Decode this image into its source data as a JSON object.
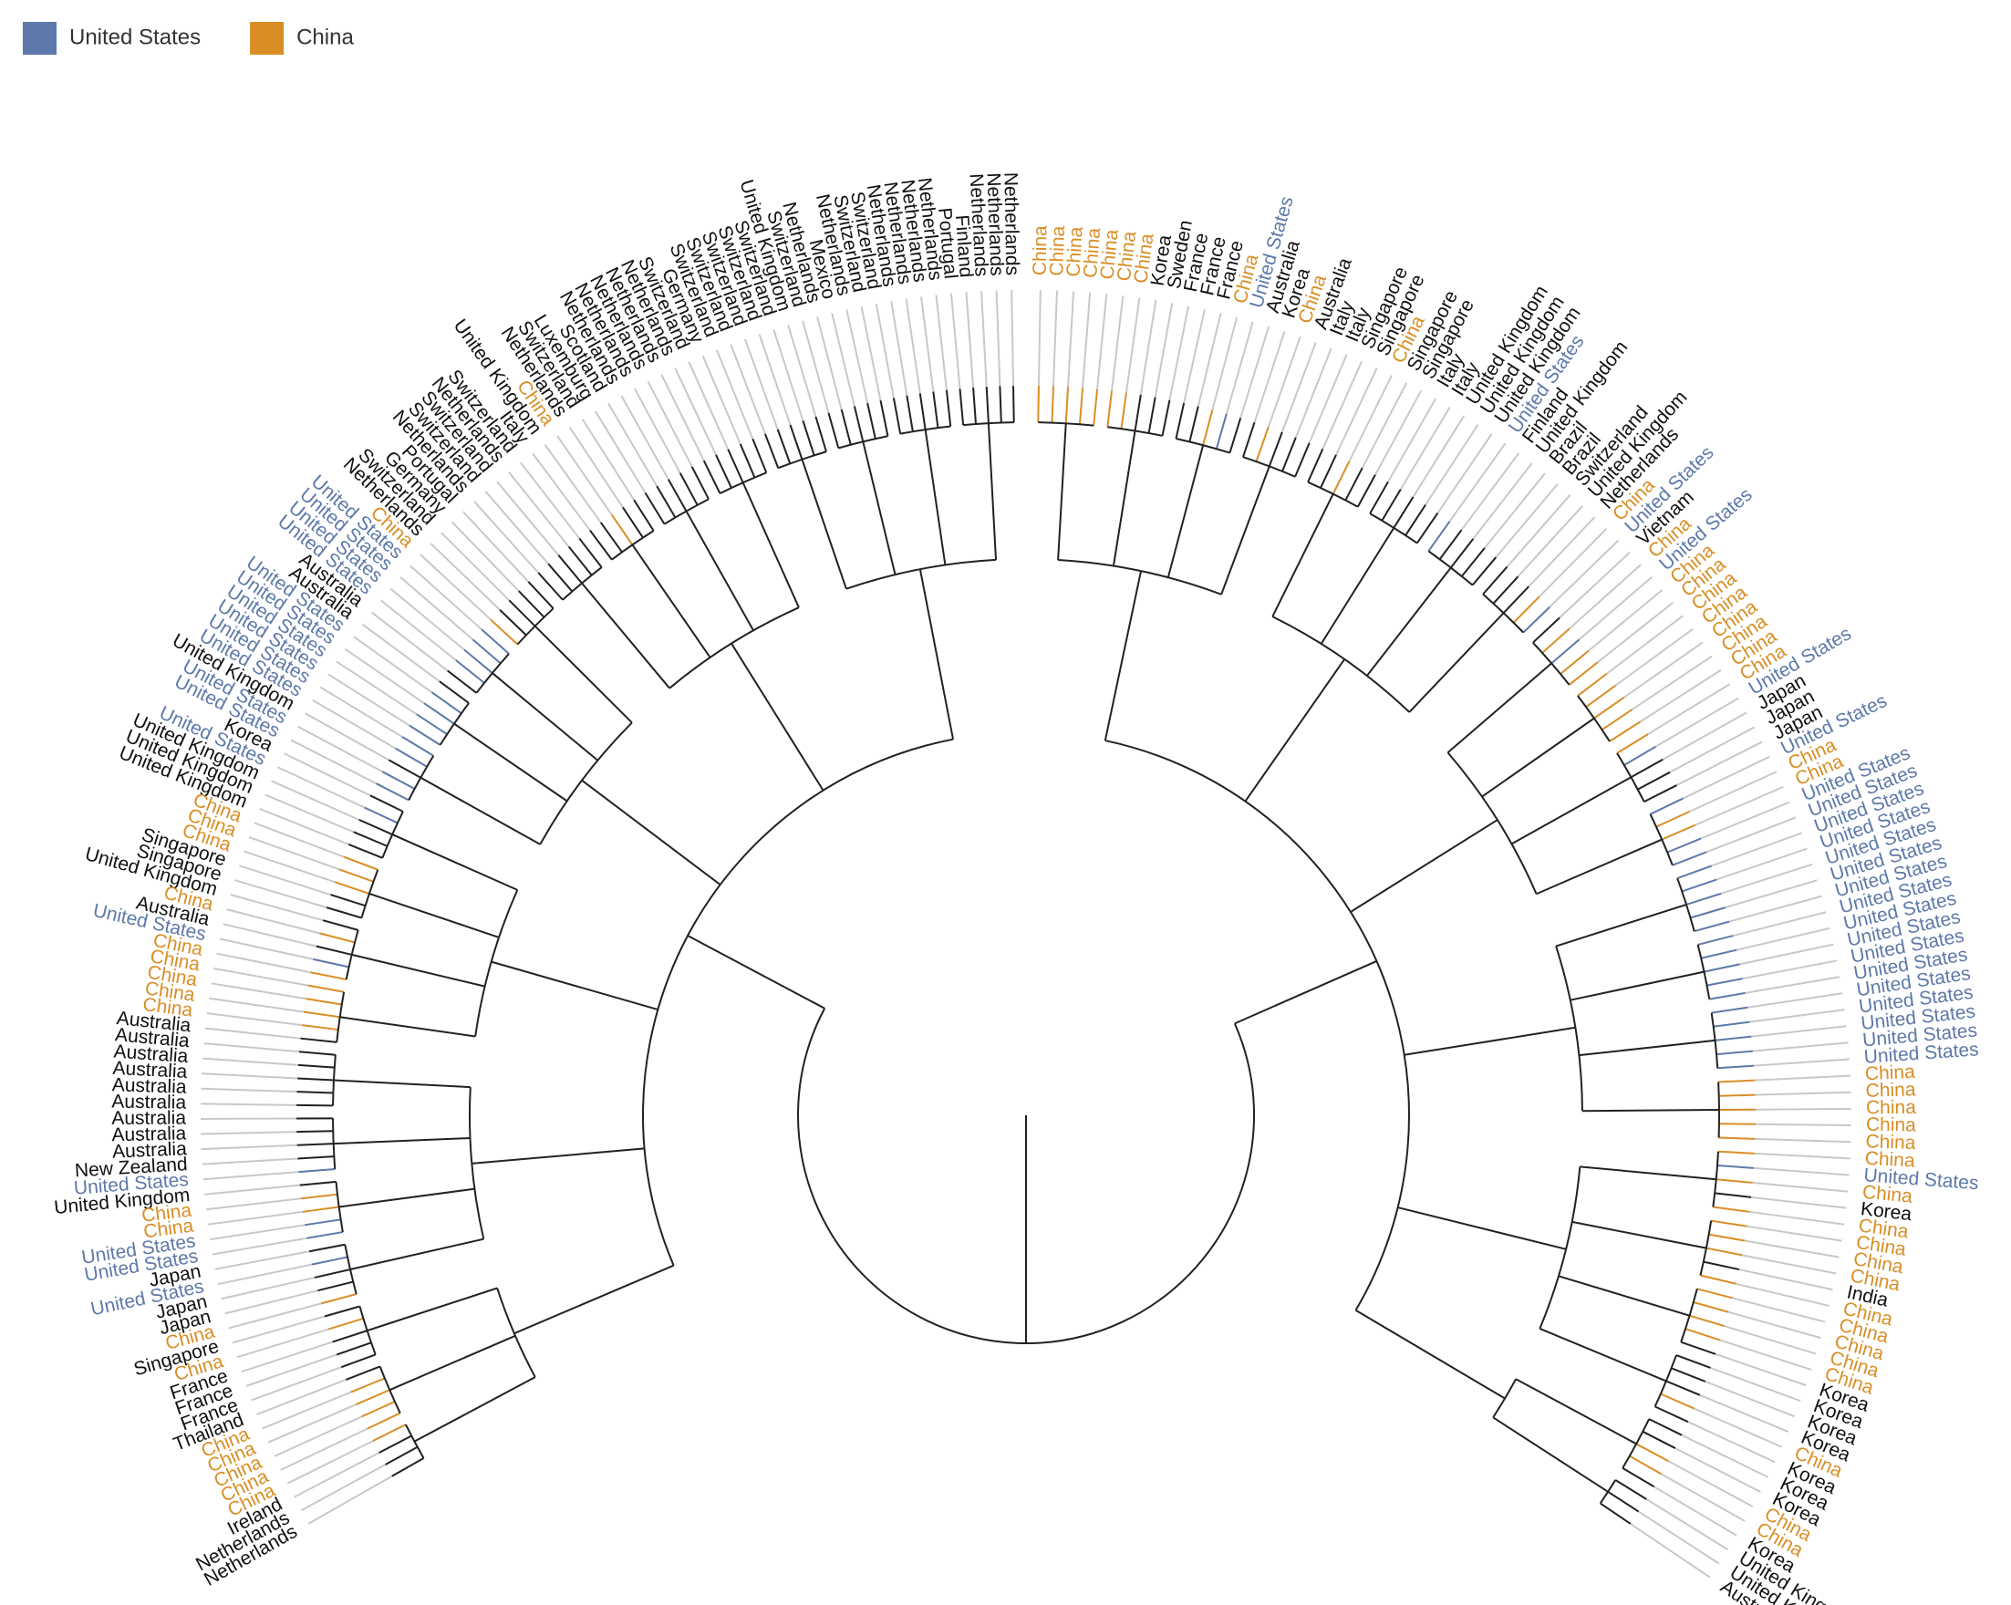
{
  "legend": [
    {
      "name": "United States",
      "color": "#5e79a9"
    },
    {
      "name": "China",
      "color": "#d98e25"
    }
  ],
  "leaves_right": [
    "China",
    "China",
    "China",
    "China",
    "China",
    "China",
    "China",
    "Korea",
    "Sweden",
    "France",
    "France",
    "France",
    "China",
    "United States",
    "Australia",
    "Korea",
    "China",
    "Australia",
    "Italy",
    "Italy",
    "Singapore",
    "Singapore",
    "China",
    "Singapore",
    "Singapore",
    "Italy",
    "Italy",
    "United Kingdom",
    "United Kingdom",
    "United Kingdom",
    "United States",
    "Finland",
    "United Kingdom",
    "Brazil",
    "Brazil",
    "Switzerland",
    "United Kingdom",
    "Netherlands",
    "China",
    "United States",
    "Vietnam",
    "China",
    "United States",
    "China",
    "China",
    "China",
    "China",
    "China",
    "China",
    "China",
    "China",
    "United States",
    "Japan",
    "Japan",
    "Japan",
    "United States",
    "China",
    "China",
    "United States",
    "United States",
    "United States",
    "United States",
    "United States",
    "United States",
    "United States",
    "United States",
    "United States",
    "United States",
    "United States",
    "United States",
    "United States",
    "United States",
    "United States",
    "United States",
    "United States",
    "China",
    "China",
    "China",
    "China",
    "China",
    "China",
    "United States",
    "China",
    "Korea",
    "China",
    "China",
    "China",
    "China",
    "India",
    "China",
    "China",
    "China",
    "China",
    "China",
    "Korea",
    "Korea",
    "Korea",
    "Korea",
    "China",
    "Korea",
    "Korea",
    "Korea",
    "China",
    "China",
    "Korea",
    "United Kingdom",
    "United Kingdom",
    "Australia"
  ],
  "leaves_left": [
    "Netherlands",
    "Netherlands",
    "Netherlands",
    "Finland",
    "Portugal",
    "Netherlands",
    "Netherlands",
    "Netherlands",
    "Netherlands",
    "Switzerland",
    "Switzerland",
    "Netherlands",
    "Mexico",
    "Netherlands",
    "Switzerland",
    "United Kingdom",
    "Switzerland",
    "Switzerland",
    "Switzerland",
    "Switzerland",
    "Switzerland",
    "Germany",
    "Switzerland",
    "Netherlands",
    "Netherlands",
    "Netherlands",
    "Netherlands",
    "Netherlands",
    "Scotland",
    "Luxemburg",
    "Switzerland",
    "Netherlands",
    "China",
    "United Kingdom",
    "Italy",
    "Switzerland",
    "Netherlands",
    "Switzerland",
    "Switzerland",
    "Netherlands",
    "Portugal",
    "Germany",
    "Switzerland",
    "Netherlands",
    "China",
    "United States",
    "United States",
    "United States",
    "United States",
    "Australia",
    "Australia",
    "United States",
    "United States",
    "United States",
    "United States",
    "United States",
    "United States",
    "United Kingdom",
    "United States",
    "United States",
    "Korea",
    "United States",
    "United Kingdom",
    "United Kingdom",
    "United Kingdom",
    "China",
    "China",
    "China",
    "Singapore",
    "Singapore",
    "United Kingdom",
    "China",
    "Australia",
    "United States",
    "China",
    "China",
    "China",
    "China",
    "China",
    "Australia",
    "Australia",
    "Australia",
    "Australia",
    "Australia",
    "Australia",
    "Australia",
    "Australia",
    "Australia",
    "New Zealand",
    "United States",
    "United Kingdom",
    "China",
    "China",
    "United States",
    "United States",
    "Japan",
    "United States",
    "Japan",
    "Japan",
    "China",
    "Singapore",
    "China",
    "France",
    "France",
    "France",
    "Thailand",
    "China",
    "China",
    "China",
    "China",
    "China",
    "Ireland",
    "Netherlands",
    "Netherlands"
  ]
}
